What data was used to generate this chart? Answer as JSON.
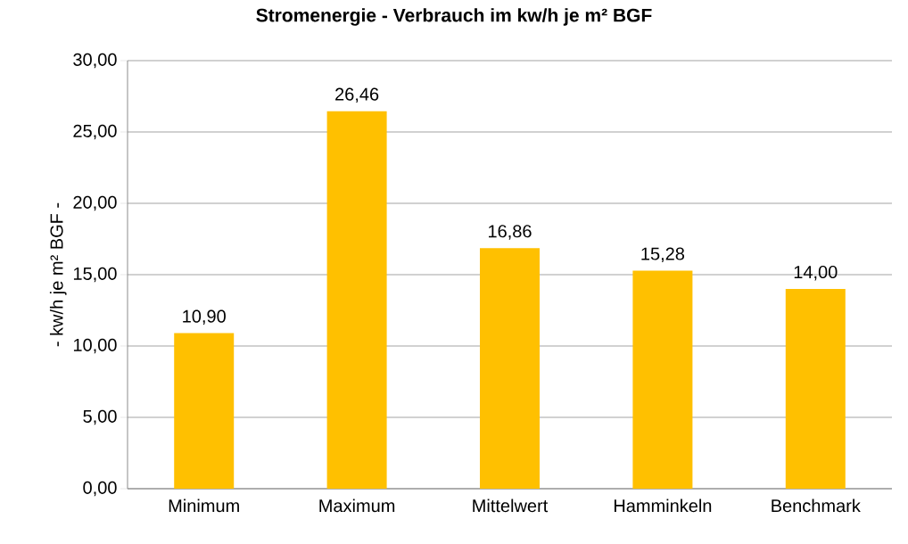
{
  "chart_data": {
    "type": "bar",
    "title": "Stromenergie - Verbrauch im kw/h je m² BGF",
    "ylabel": "- kw/h je m² BGF -",
    "categories": [
      "Minimum",
      "Maximum",
      "Mittelwert",
      "Hamminkeln",
      "Benchmark"
    ],
    "values": [
      10.9,
      26.46,
      16.86,
      15.28,
      14.0
    ],
    "value_labels": [
      "10,90",
      "26,46",
      "16,86",
      "15,28",
      "14,00"
    ],
    "color": "#ffc000",
    "ylim": [
      0,
      30
    ],
    "yticks": [
      {
        "value": 0,
        "label": "0,00"
      },
      {
        "value": 5,
        "label": "5,00"
      },
      {
        "value": 10,
        "label": "10,00"
      },
      {
        "value": 15,
        "label": "15,00"
      },
      {
        "value": 20,
        "label": "20,00"
      },
      {
        "value": 25,
        "label": "25,00"
      },
      {
        "value": 30,
        "label": "30,00"
      }
    ],
    "grid": "y"
  }
}
